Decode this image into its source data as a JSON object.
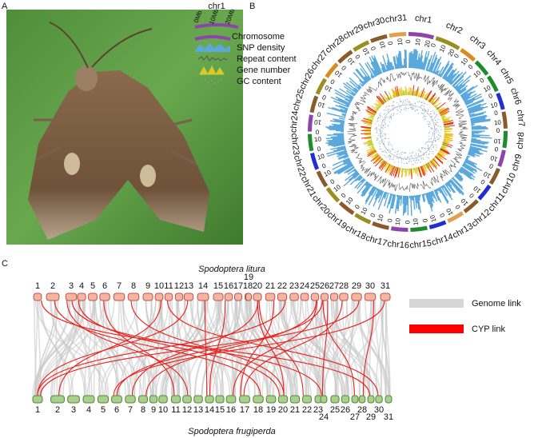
{
  "panels": {
    "a": "A",
    "b": "B",
    "c": "C"
  },
  "circos": {
    "chromosomes": [
      {
        "label": "chr1",
        "ticks": [
          0,
          10,
          20
        ]
      },
      {
        "label": "chr2",
        "ticks": [
          0,
          10,
          20
        ]
      },
      {
        "label": "chr3",
        "ticks": [
          0,
          10
        ]
      },
      {
        "label": "chr4",
        "ticks": [
          0,
          10
        ]
      },
      {
        "label": "chr5",
        "ticks": [
          0,
          10
        ]
      },
      {
        "label": "chr6",
        "ticks": [
          0,
          10
        ]
      },
      {
        "label": "chr7",
        "ticks": [
          0,
          10
        ]
      },
      {
        "label": "chr8",
        "ticks": [
          0,
          10
        ]
      },
      {
        "label": "chr9",
        "ticks": [
          0,
          10
        ]
      },
      {
        "label": "chr10",
        "ticks": [
          0,
          10
        ]
      },
      {
        "label": "chr11",
        "ticks": [
          0,
          10
        ]
      },
      {
        "label": "chr12",
        "ticks": [
          0,
          10
        ]
      },
      {
        "label": "chr13",
        "ticks": [
          0,
          10
        ]
      },
      {
        "label": "chr14",
        "ticks": [
          0,
          10
        ]
      },
      {
        "label": "chr15",
        "ticks": [
          0,
          10
        ]
      },
      {
        "label": "chr16",
        "ticks": [
          0,
          10
        ]
      },
      {
        "label": "chr17",
        "ticks": [
          0,
          10
        ]
      },
      {
        "label": "chr18",
        "ticks": [
          0,
          10
        ]
      },
      {
        "label": "chr19",
        "ticks": [
          0,
          10
        ]
      },
      {
        "label": "chr20",
        "ticks": [
          0,
          10
        ]
      },
      {
        "label": "chr21",
        "ticks": [
          0,
          10
        ]
      },
      {
        "label": "chr22",
        "ticks": [
          0,
          10
        ]
      },
      {
        "label": "chr23",
        "ticks": [
          0,
          10
        ]
      },
      {
        "label": "chr24",
        "ticks": [
          0,
          10
        ]
      },
      {
        "label": "chr25",
        "ticks": [
          0,
          10
        ]
      },
      {
        "label": "chr26",
        "ticks": [
          0,
          10
        ]
      },
      {
        "label": "chr27",
        "ticks": [
          0,
          10
        ]
      },
      {
        "label": "chr28",
        "ticks": [
          0,
          10
        ]
      },
      {
        "label": "chr29",
        "ticks": [
          0,
          10
        ]
      },
      {
        "label": "chr30",
        "ticks": [
          0,
          10
        ]
      },
      {
        "label": "chr31",
        "ticks": [
          0,
          10
        ]
      }
    ],
    "legend": {
      "title": "chr1",
      "scale": [
        "0Mb",
        "10Mb",
        "20Mb"
      ],
      "items": [
        "Chromosome",
        "SNP density",
        "Repeat content",
        "Gene number",
        "GC content"
      ]
    }
  },
  "synteny": {
    "top_species": "Spodoptera litura",
    "top_labels": [
      1,
      2,
      3,
      4,
      5,
      6,
      7,
      8,
      9,
      10,
      11,
      12,
      13,
      14,
      15,
      16,
      17,
      18,
      19,
      20,
      21,
      22,
      23,
      24,
      25,
      26,
      27,
      28,
      29,
      30,
      31
    ],
    "bottom_species": "Spodoptera frugiperda",
    "bottom_labels": [
      1,
      2,
      3,
      4,
      5,
      6,
      7,
      8,
      9,
      10,
      11,
      12,
      13,
      14,
      15,
      16,
      17,
      18,
      19,
      20,
      21,
      22,
      23,
      24,
      25,
      26,
      27,
      28,
      29,
      30,
      31
    ],
    "legend": [
      "Genome link",
      "CYP link"
    ]
  }
}
